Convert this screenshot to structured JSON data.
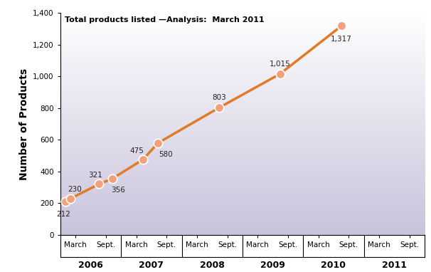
{
  "chart_data": {
    "type": "line",
    "title": "Total products listed —Analysis:  March 2011",
    "y_label": "Number of Products",
    "x": [
      2006.08,
      2006.17,
      2006.64,
      2006.86,
      2007.36,
      2007.61,
      2008.62,
      2009.62,
      2010.63
    ],
    "values": [
      212,
      230,
      321,
      356,
      475,
      580,
      803,
      1015,
      1317
    ],
    "value_labels": [
      "212",
      "230",
      "321",
      "356",
      "475",
      "580",
      "803",
      "1,015",
      "1,317"
    ],
    "data_labels": true,
    "color": "#e07b28",
    "marker": "circle",
    "xlim": [
      2006,
      2012
    ],
    "xticks": [
      {
        "value": 2006.25,
        "label": "March"
      },
      {
        "value": 2006.75,
        "label": "Sept."
      },
      {
        "value": 2007.25,
        "label": "March"
      },
      {
        "value": 2007.75,
        "label": "Sept."
      },
      {
        "value": 2008.25,
        "label": "March"
      },
      {
        "value": 2008.75,
        "label": "Sept."
      },
      {
        "value": 2009.25,
        "label": "March"
      },
      {
        "value": 2009.75,
        "label": "Sept."
      },
      {
        "value": 2010.25,
        "label": "March"
      },
      {
        "value": 2010.75,
        "label": "Sept."
      },
      {
        "value": 2011.25,
        "label": "March"
      },
      {
        "value": 2011.75,
        "label": "Sept."
      }
    ],
    "year_labels": [
      {
        "value": 2006.5,
        "label": "2006"
      },
      {
        "value": 2007.5,
        "label": "2007"
      },
      {
        "value": 2008.5,
        "label": "2008"
      },
      {
        "value": 2009.5,
        "label": "2009"
      },
      {
        "value": 2010.5,
        "label": "2010"
      },
      {
        "value": 2011.5,
        "label": "2011"
      }
    ],
    "ylim": [
      0,
      1400
    ],
    "yticks": [
      0,
      200,
      400,
      600,
      800,
      {
        "value": 1000,
        "label": "1,000"
      },
      {
        "value": 1200,
        "label": "1,200"
      },
      {
        "value": 1400,
        "label": "1,400"
      }
    ],
    "grid": false
  }
}
